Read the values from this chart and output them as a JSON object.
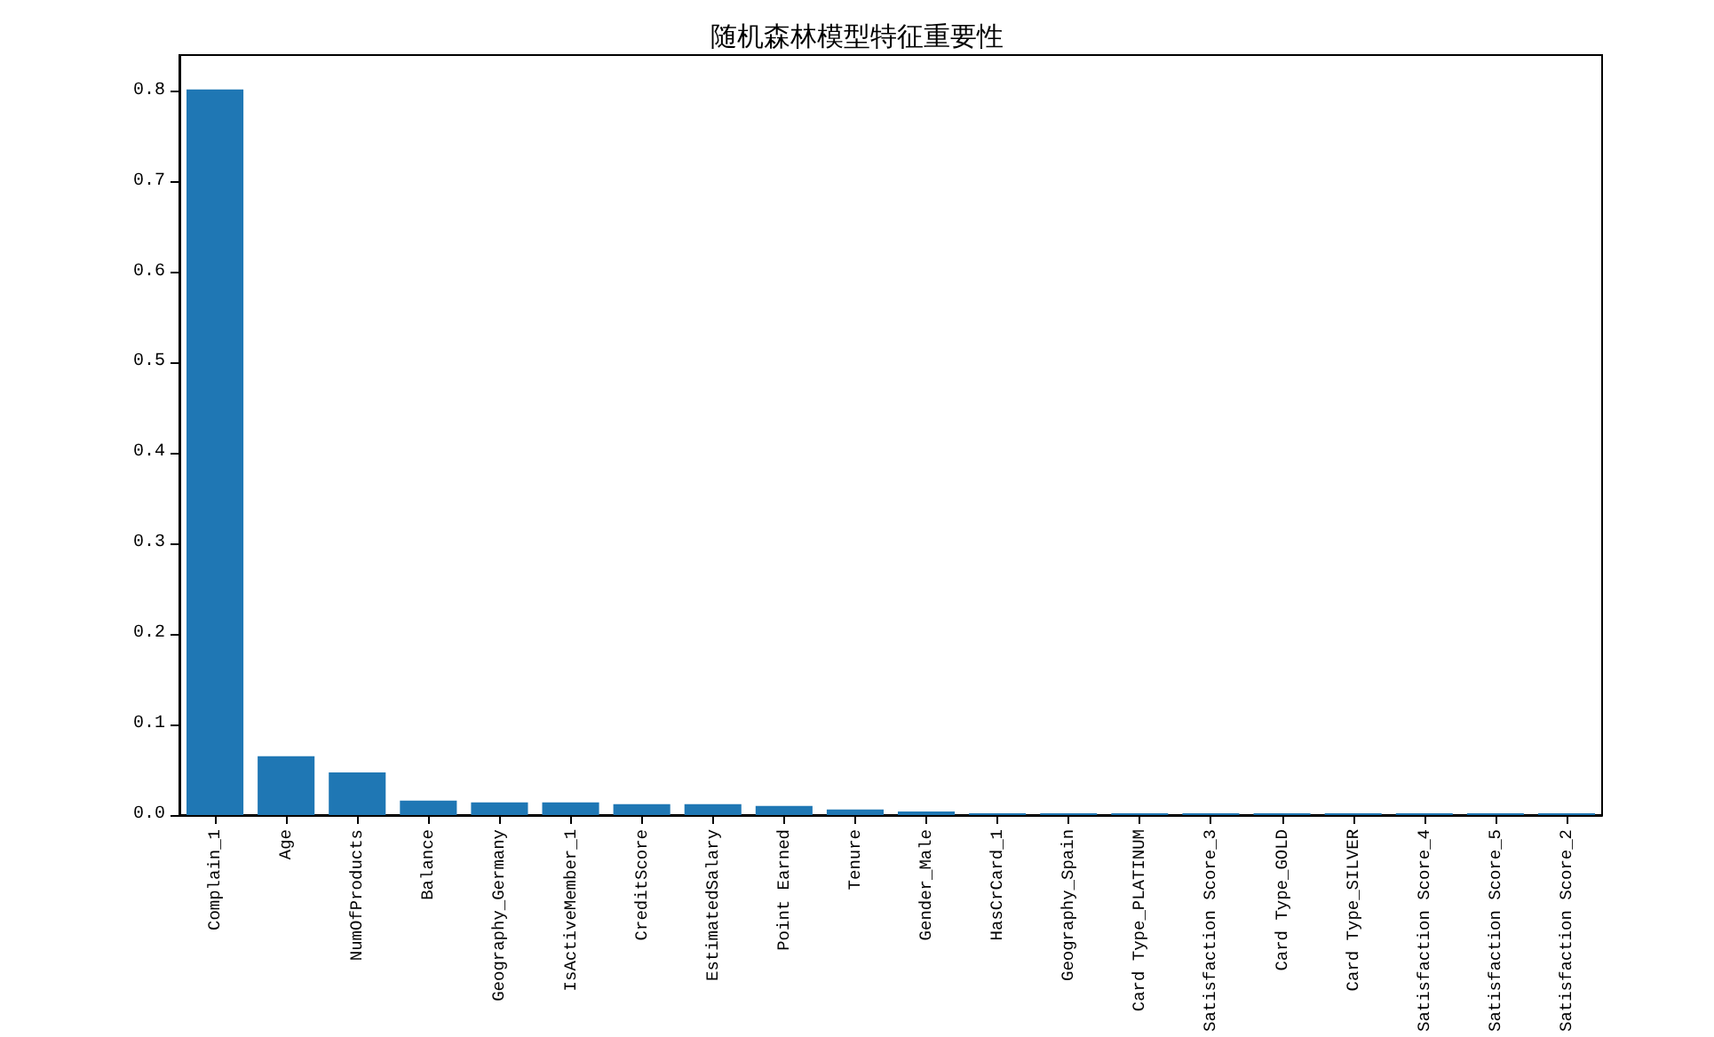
{
  "chart_data": {
    "type": "bar",
    "title": "随机森林模型特征重要性",
    "categories": [
      "Complain_1",
      "Age",
      "NumOfProducts",
      "Balance",
      "Geography_Germany",
      "IsActiveMember_1",
      "CreditScore",
      "EstimatedSalary",
      "Point Earned",
      "Tenure",
      "Gender_Male",
      "HasCrCard_1",
      "Geography_Spain",
      "Card Type_PLATINUM",
      "Satisfaction Score_3",
      "Card Type_GOLD",
      "Card Type_SILVER",
      "Satisfaction Score_4",
      "Satisfaction Score_5",
      "Satisfaction Score_2"
    ],
    "values": [
      0.802,
      0.065,
      0.047,
      0.016,
      0.014,
      0.014,
      0.012,
      0.012,
      0.01,
      0.006,
      0.004,
      0.002,
      0.002,
      0.002,
      0.002,
      0.002,
      0.002,
      0.002,
      0.002,
      0.002
    ],
    "color": "#1f77b4",
    "ylim": [
      0,
      0.84
    ],
    "yticks": [
      {
        "value": 0,
        "label": "0.0"
      },
      {
        "value": 0.1,
        "label": "0.1"
      },
      {
        "value": 0.2,
        "label": "0.2"
      },
      {
        "value": 0.3,
        "label": "0.3"
      },
      {
        "value": 0.4,
        "label": "0.4"
      },
      {
        "value": 0.5,
        "label": "0.5"
      },
      {
        "value": 0.6,
        "label": "0.6"
      },
      {
        "value": 0.7,
        "label": "0.7"
      },
      {
        "value": 0.8,
        "label": "0.8"
      }
    ],
    "grid": false
  }
}
